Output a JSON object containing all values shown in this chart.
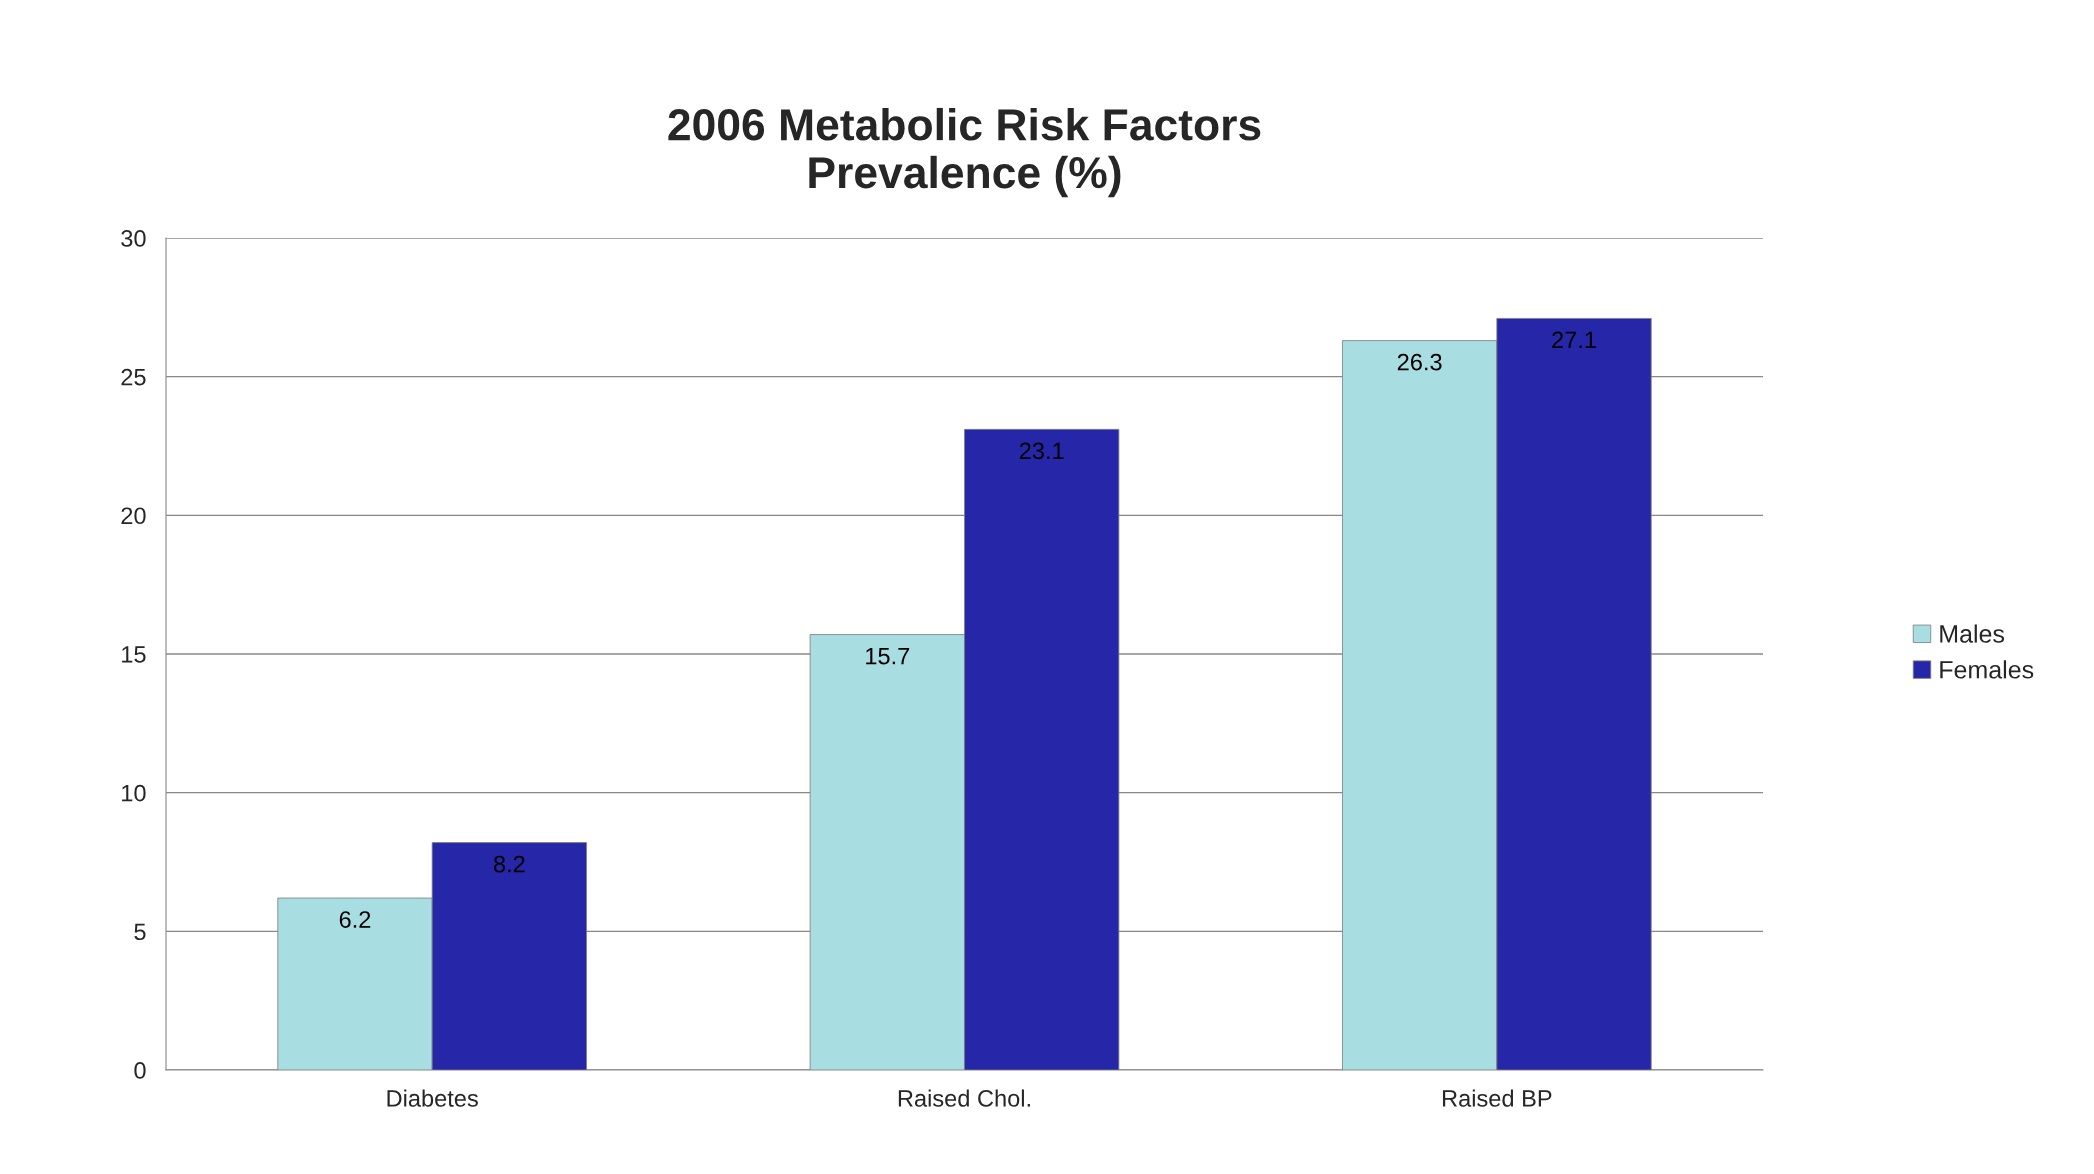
{
  "chart_data": {
    "type": "bar",
    "title": "2006 Metabolic Risk Factors\nPrevalence (%)",
    "categories": [
      "Diabetes",
      "Raised Chol.",
      "Raised BP"
    ],
    "series": [
      {
        "name": "Males",
        "color": "#a8dde2",
        "values": [
          6.2,
          15.7,
          26.3
        ]
      },
      {
        "name": "Females",
        "color": "#2626a8",
        "values": [
          8.2,
          23.1,
          27.1
        ]
      }
    ],
    "ylim": [
      0,
      30
    ],
    "yticks": [
      0,
      5,
      10,
      15,
      20,
      25,
      30
    ],
    "grid": "y",
    "legend": "right",
    "data_labels": true
  }
}
